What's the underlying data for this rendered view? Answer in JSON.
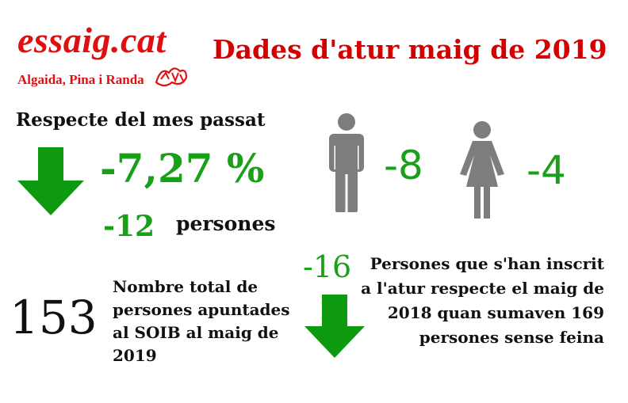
{
  "brand": {
    "name": "essaig.cat",
    "subtitle": "Algaida, Pina i Randa"
  },
  "title": "Dades d'atur maig de 2019",
  "monthly": {
    "heading": "Respecte del mes passat",
    "percent_change": "-7,27 %",
    "count_change": "-12",
    "count_unit": "persones",
    "men_change": "-8",
    "women_change": "-4"
  },
  "yearly": {
    "total": "153",
    "total_description": "Nombre total de persones apuntades al SOIB al maig de 2019",
    "year_change": "-16",
    "year_description": "Persones que s'han inscrit a l'atur respecte el maig de 2018 quan sumaven 169 persones sense feina"
  },
  "colors": {
    "brand_red": "#e01010",
    "title_red": "#d40000",
    "accent_green": "#18a018",
    "arrow_green": "#0e9a0e",
    "figure_gray": "#7d7d7d"
  },
  "icons": [
    "down-arrow-icon",
    "man-icon",
    "woman-icon"
  ]
}
